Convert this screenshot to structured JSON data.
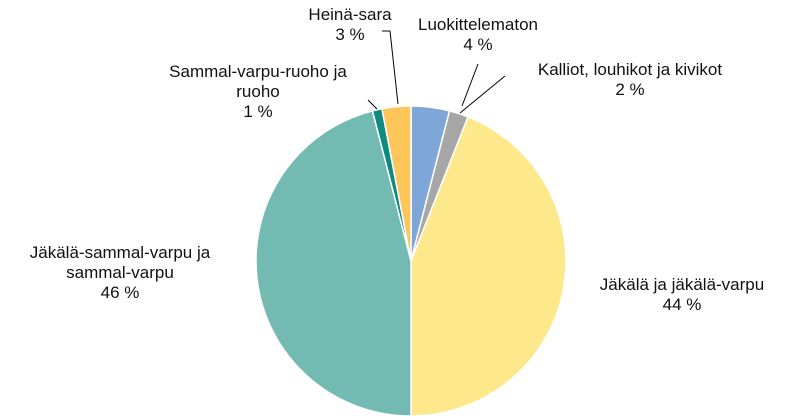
{
  "chart_data": {
    "type": "pie",
    "categories": [
      "Luokittelematon",
      "Kalliot, louhikot ja kivikot",
      "Jäkälä ja jäkälä-varpu",
      "Jäkälä-sammal-varpu ja sammal-varpu",
      "Sammal-varpu-ruoho ja ruoho",
      "Heinä-sara"
    ],
    "values": [
      4,
      2,
      44,
      46,
      1,
      3
    ],
    "value_labels": [
      "4 %",
      "2 %",
      "44 %",
      "46 %",
      "1 %",
      "3 %"
    ],
    "colors": [
      "#7fa6d9",
      "#a6a6a6",
      "#fde98c",
      "#72bab2",
      "#0e8a80",
      "#fdc55a"
    ]
  }
}
